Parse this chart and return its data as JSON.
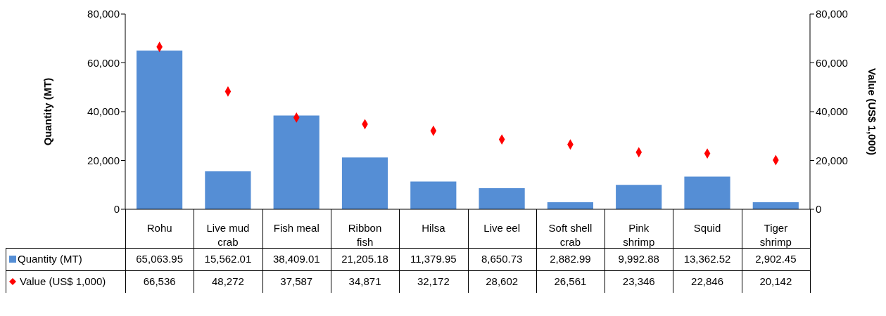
{
  "chart_data": {
    "type": "bar",
    "ylabel": "Quantity (MT)",
    "y2label": "Value (US$ 1,000)",
    "categories": [
      "Rohu",
      "Live mud crab",
      "Fish meal",
      "Ribbon fish",
      "Hilsa",
      "Live eel",
      "Soft shell crab",
      "Pink shrimp",
      "Squid",
      "Tiger shrimp"
    ],
    "series": [
      {
        "name": "Quantity (MT)",
        "color": "#558ed5",
        "values": [
          65063.95,
          15562.01,
          38409.01,
          21205.18,
          11379.95,
          8650.73,
          2882.99,
          9992.88,
          13362.52,
          2902.45
        ],
        "value_labels": [
          "65,063.95",
          "15,562.01",
          "38,409.01",
          "21,205.18",
          "11,379.95",
          "8,650.73",
          "2,882.99",
          "9,992.88",
          "13,362.52",
          "2,902.45"
        ]
      },
      {
        "name": "Value (US$ 1,000)",
        "type": "scatter",
        "axis": "y2",
        "marker": "diamond",
        "color": "#ff0000",
        "values": [
          66536,
          48272,
          37587,
          34871,
          32172,
          28602,
          26561,
          23346,
          22846,
          20142
        ],
        "value_labels": [
          "66,536",
          "48,272",
          "37,587",
          "34,871",
          "32,172",
          "28,602",
          "26,561",
          "23,346",
          "22,846",
          "20,142"
        ]
      }
    ],
    "ylim": [
      0,
      80000
    ],
    "yticks": [
      0,
      {
        "value": 20000,
        "label": "20,000"
      },
      {
        "value": 40000,
        "label": "40,000"
      },
      {
        "value": 60000,
        "label": "60,000"
      },
      {
        "value": 80000,
        "label": "80,000"
      }
    ],
    "y2lim": [
      0,
      80000
    ],
    "y2ticks": [
      0,
      {
        "value": 20000,
        "label": "20,000"
      },
      {
        "value": 40000,
        "label": "40,000"
      },
      {
        "value": 60000,
        "label": "60,000"
      },
      {
        "value": 80000,
        "label": "80,000"
      }
    ],
    "legend": "bottom"
  }
}
